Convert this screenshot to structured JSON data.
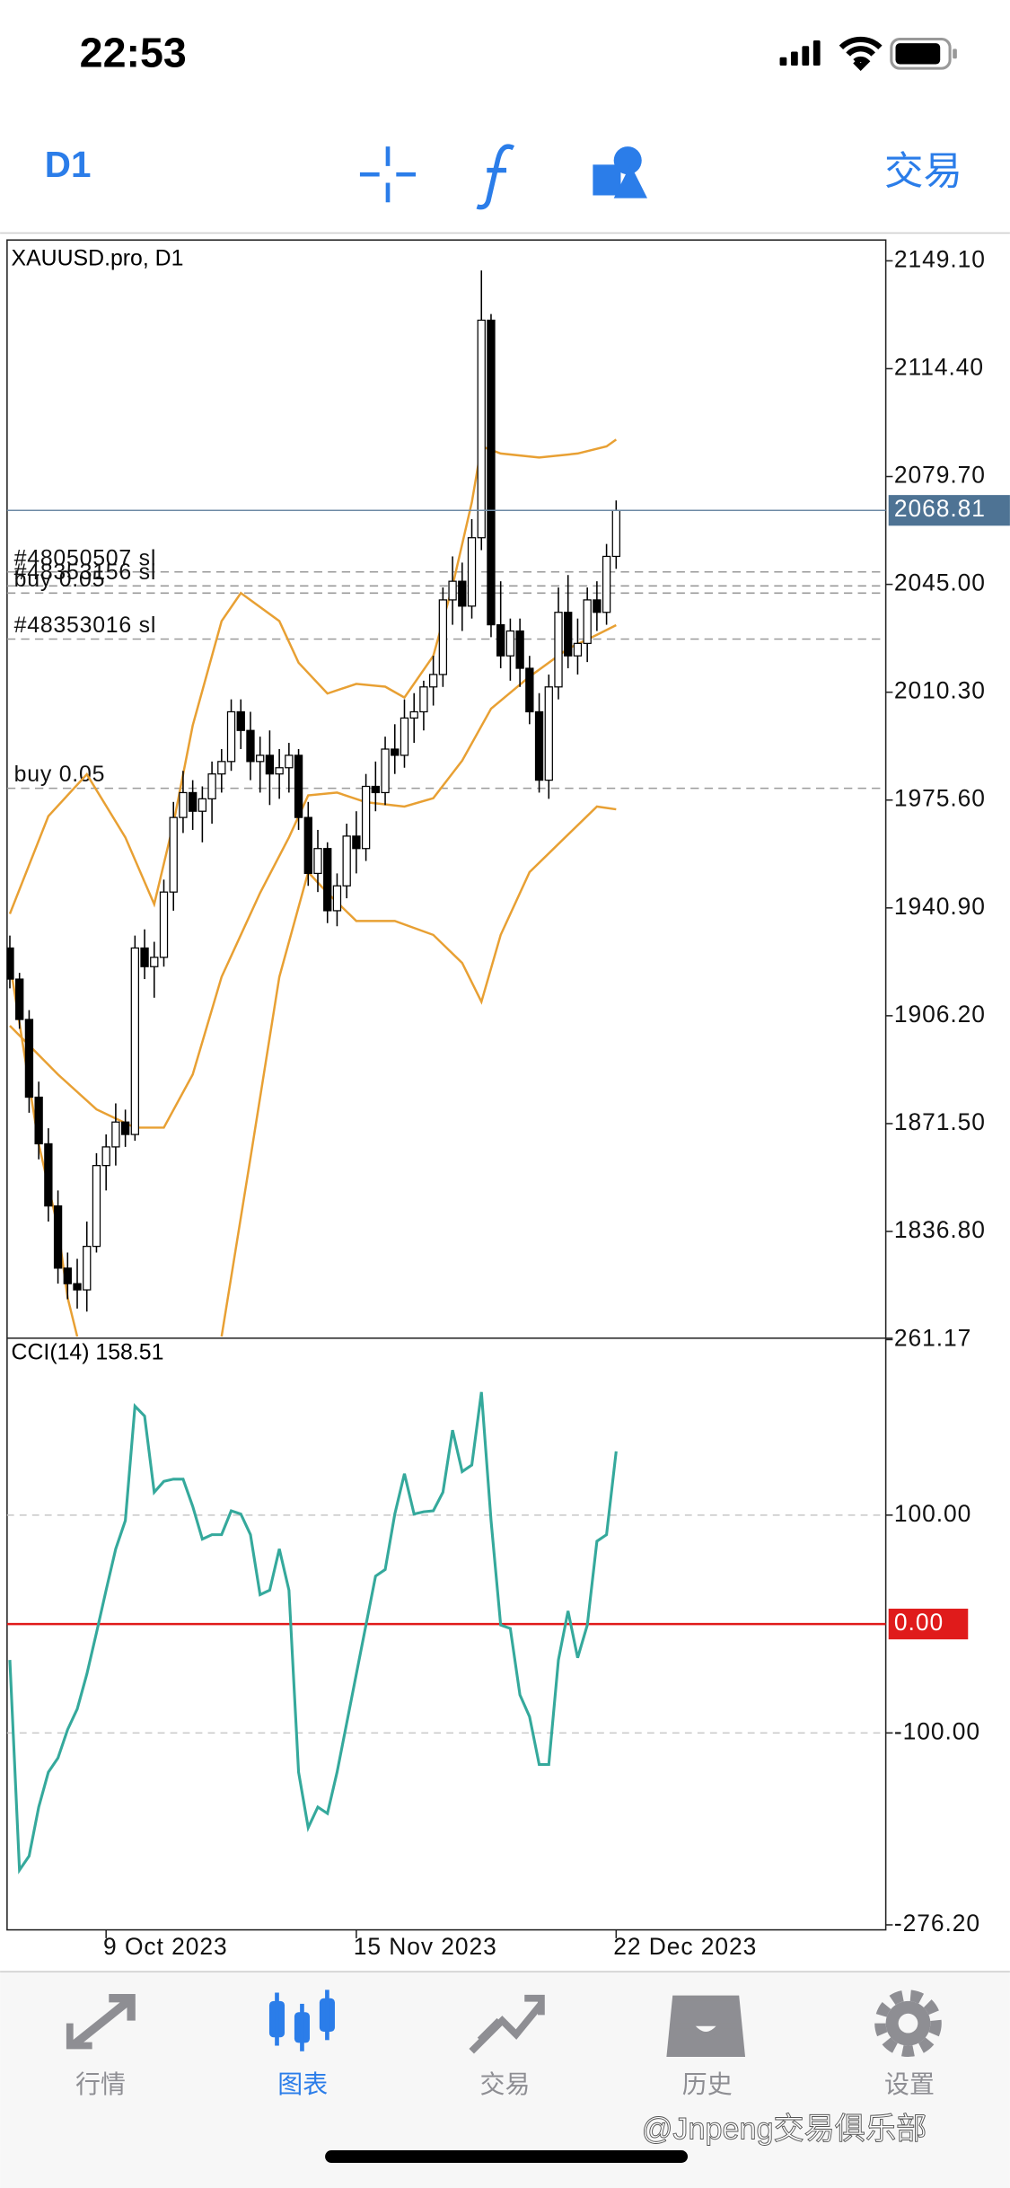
{
  "status_bar": {
    "time": "22:53"
  },
  "toolbar": {
    "timeframe": "D1",
    "trade": "交易"
  },
  "chart_data": [
    {
      "type": "candlestick",
      "title": "XAUUSD.pro, D1",
      "categories": [
        null,
        null,
        null,
        null,
        null,
        null,
        null,
        null,
        null,
        null,
        "9 Oct 2023",
        null,
        null,
        null,
        null,
        null,
        null,
        null,
        null,
        null,
        null,
        null,
        null,
        null,
        null,
        null,
        null,
        null,
        null,
        null,
        null,
        null,
        null,
        null,
        null,
        null,
        "15 Nov 2023",
        null,
        null,
        null,
        null,
        null,
        null,
        null,
        null,
        null,
        null,
        null,
        null,
        null,
        null,
        null,
        null,
        null,
        null,
        null,
        null,
        null,
        null,
        null,
        null,
        null,
        null,
        "22 Dec 2023"
      ],
      "open": [
        1928,
        1918,
        1905,
        1880,
        1865,
        1845,
        1825,
        1820,
        1818,
        1832,
        1858,
        1864,
        1872,
        1868,
        1928,
        1922,
        1925,
        1946,
        1970,
        1978,
        1972,
        1976,
        1984,
        1988,
        2004,
        1998,
        1988,
        1990,
        1984,
        1986,
        1990,
        1970,
        1952,
        1960,
        1940,
        1948,
        1964,
        1960,
        1980,
        1978,
        1992,
        1990,
        2002,
        2004,
        2012,
        2016,
        2040,
        2046,
        2038,
        2060,
        2130,
        2032,
        2022,
        2030,
        2018,
        2004,
        1982,
        2012,
        2036,
        2022,
        2026,
        2040,
        2036,
        2054
      ],
      "high": [
        1932,
        1920,
        1908,
        1885,
        1870,
        1850,
        1830,
        1828,
        1840,
        1862,
        1868,
        1878,
        1876,
        1932,
        1934,
        1930,
        1950,
        1975,
        1985,
        1982,
        1980,
        1988,
        1992,
        2008,
        2008,
        2004,
        1996,
        1998,
        1992,
        1994,
        1992,
        1975,
        1966,
        1962,
        1952,
        1968,
        1972,
        1984,
        1988,
        1996,
        2000,
        2008,
        2010,
        2014,
        2022,
        2044,
        2054,
        2052,
        2066,
        2146,
        2132,
        2046,
        2034,
        2034,
        2022,
        2010,
        2016,
        2044,
        2048,
        2034,
        2044,
        2046,
        2058,
        2072
      ],
      "low": [
        1915,
        1902,
        1875,
        1860,
        1840,
        1820,
        1815,
        1812,
        1811,
        1830,
        1850,
        1858,
        1864,
        1866,
        1918,
        1912,
        1922,
        1940,
        1965,
        1966,
        1962,
        1968,
        1978,
        1985,
        1992,
        1982,
        1978,
        1974,
        1976,
        1978,
        1966,
        1948,
        1946,
        1936,
        1935,
        1944,
        1952,
        1956,
        1972,
        1974,
        1984,
        1986,
        1994,
        1998,
        2006,
        2012,
        2032,
        2030,
        2034,
        2056,
        2028,
        2018,
        2014,
        2012,
        2000,
        1978,
        1976,
        2008,
        2018,
        2016,
        2020,
        2030,
        2032,
        2050
      ],
      "close": [
        1918,
        1905,
        1880,
        1865,
        1845,
        1825,
        1820,
        1818,
        1832,
        1858,
        1864,
        1872,
        1868,
        1928,
        1922,
        1925,
        1946,
        1970,
        1978,
        1972,
        1976,
        1984,
        1988,
        2004,
        1998,
        1988,
        1990,
        1984,
        1986,
        1990,
        1970,
        1952,
        1960,
        1940,
        1948,
        1964,
        1960,
        1980,
        1978,
        1992,
        1990,
        2002,
        2004,
        2012,
        2016,
        2040,
        2046,
        2038,
        2060,
        2130,
        2032,
        2022,
        2030,
        2018,
        2004,
        1982,
        2012,
        2036,
        2022,
        2026,
        2040,
        2036,
        2054,
        2068.81
      ],
      "up_color": "#ffffff",
      "down_color": "#000000",
      "ylim": [
        1802.9,
        2155.8
      ],
      "yticks": [
        {
          "value": 2149.1,
          "label": "2149.10"
        },
        {
          "value": 2114.4,
          "label": "2114.40"
        },
        {
          "value": 2079.7,
          "label": "2079.70"
        },
        {
          "value": 2045,
          "label": "2045.00"
        },
        {
          "value": 2010.3,
          "label": "2010.30"
        },
        {
          "value": 1975.6,
          "label": "1975.60"
        },
        {
          "value": 1940.9,
          "label": "1940.90"
        },
        {
          "value": 1906.2,
          "label": "1906.20"
        },
        {
          "value": 1871.5,
          "label": "1871.50"
        },
        {
          "value": 1836.8,
          "label": "1836.80"
        }
      ],
      "current_price": 2068.81,
      "overlays": [
        {
          "color": "#e8a033",
          "x": [
            0,
            4,
            8,
            12,
            15,
            17,
            19,
            22,
            24,
            28,
            30,
            33,
            36,
            39,
            41,
            44,
            46,
            48,
            49,
            51,
            55,
            59,
            62,
            63
          ],
          "values": [
            1939.0,
            1970.4,
            1983.9,
            1963.6,
            1942.1,
            1968.1,
            1999.6,
            2033.2,
            2042.2,
            2033.2,
            2019.8,
            2009.9,
            2013.0,
            2012.1,
            2008.6,
            2022.0,
            2044.5,
            2071.4,
            2089.4,
            2087.1,
            2085.8,
            2087.1,
            2089.4,
            2091.6
          ]
        },
        {
          "color": "#e8a033",
          "x": [
            0,
            5,
            9,
            13,
            16,
            19,
            22,
            26,
            29,
            31,
            34,
            37,
            41,
            44,
            47,
            50,
            54,
            58,
            61,
            63
          ],
          "values": [
            1903.0,
            1887.3,
            1876.1,
            1870.2,
            1870.2,
            1887.3,
            1918.7,
            1945.7,
            1963.6,
            1977.1,
            1978.0,
            1974.9,
            1973.5,
            1976.2,
            1988.3,
            2005.0,
            2015.3,
            2024.3,
            2028.8,
            2031.9
          ]
        },
        {
          "color": "#e8a033",
          "x": [
            22,
            25,
            28,
            31,
            33,
            36,
            40,
            44,
            47,
            49,
            51,
            54,
            58,
            61,
            63
          ],
          "values": [
            1803,
            1860.4,
            1918.7,
            1952.4,
            1945.7,
            1936.7,
            1936.7,
            1932.2,
            1923.2,
            1910.7,
            1932.2,
            1952.4,
            1964.5,
            1973.5,
            1972.6
          ]
        },
        {
          "color": "#e8a033",
          "x": [
            0,
            3,
            5,
            6,
            7
          ],
          "values": [
            1923.2,
            1864.9,
            1837.9,
            1815.5,
            1803
          ]
        }
      ],
      "levels": [
        {
          "value": 2049.0,
          "label": "#48050507 sl"
        },
        {
          "value": 2044.5,
          "label": "#48353156 sl"
        },
        {
          "value": 2042.2,
          "label": "buy 0.05"
        },
        {
          "value": 2027.4,
          "label": "#48353016 sl"
        },
        {
          "value": 1979.4,
          "label": "buy 0.05"
        }
      ]
    },
    {
      "type": "line",
      "title": "CCI(14) 158.51",
      "color": "#35a99c",
      "values": [
        -33,
        -226,
        -213,
        -168,
        -136,
        -123,
        -97,
        -78,
        -46,
        -8,
        31,
        69,
        95,
        200,
        191,
        121,
        131,
        133,
        133,
        108,
        78,
        82,
        82,
        104,
        101,
        82,
        27,
        31,
        69,
        31,
        -136,
        -187,
        -168,
        -174,
        -136,
        -91,
        -46,
        -1,
        44,
        50,
        101,
        138,
        101,
        103,
        104,
        121,
        178,
        140,
        146,
        213,
        95,
        -1,
        -4,
        -65,
        -85,
        -129,
        -129,
        -33,
        12,
        -31,
        -1,
        76,
        82,
        158.51
      ],
      "ylim": [
        -280.8,
        261.17
      ],
      "yticks": [
        261.17,
        {
          "value": 100,
          "label": "100.00"
        },
        {
          "value": -100,
          "label": "-100.00"
        },
        {
          "value": -276.2,
          "label": "-276.20"
        }
      ],
      "baseline": {
        "value": 0,
        "label": "0.00",
        "color": "#e01b1b"
      }
    }
  ],
  "tab_bar": {
    "tabs": [
      "行情",
      "图表",
      "交易",
      "历史",
      "设置"
    ],
    "active": 1
  },
  "watermark": "@Jnpeng交易俱乐部"
}
